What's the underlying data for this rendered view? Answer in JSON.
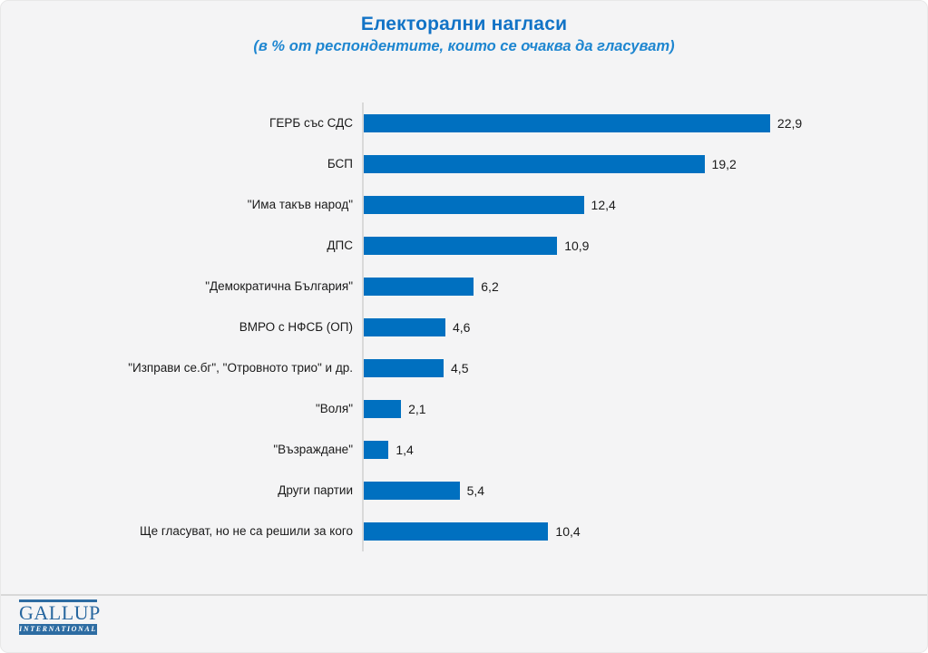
{
  "page": {
    "title": "Електорални нагласи",
    "subtitle": "(в % от респондентите, които се очаква да гласуват)"
  },
  "chart_data": {
    "type": "bar",
    "orientation": "horizontal",
    "title": "Електорални нагласи",
    "subtitle": "(в % от респондентите, които се очаква да гласуват)",
    "grid": false,
    "legend": false,
    "bar_color": "#0070c0",
    "axis_color": "#d9d9d9",
    "categories": [
      "ГЕРБ със СДС",
      "БСП",
      "\"Има такъв народ\"",
      "ДПС",
      "\"Демократична България\"",
      "ВМРО с НФСБ (ОП)",
      "\"Изправи се.бг\", \"Отровното трио\" и др.",
      "\"Воля\"",
      "\"Възраждане\"",
      "Други партии",
      "Ще гласуват, но не са решили за кого"
    ],
    "values": [
      22.9,
      19.2,
      12.4,
      10.9,
      6.2,
      4.6,
      4.5,
      2.1,
      1.4,
      5.4,
      10.4
    ],
    "value_labels": [
      "22,9",
      "19,2",
      "12,4",
      "10,9",
      "6,2",
      "4,6",
      "4,5",
      "2,1",
      "1,4",
      "5,4",
      "10,4"
    ]
  },
  "logo": {
    "name": "GALLUP",
    "sub": "INTERNATIONAL"
  },
  "colors": {
    "title_blue": "#1273c6",
    "subtitle_blue": "#1e86d0",
    "bar_blue": "#0070c0",
    "logo_blue": "#2d6ca2",
    "background": "#f4f4f5",
    "axis_gray": "#d9d9d9",
    "text": "#1a1a1a"
  }
}
